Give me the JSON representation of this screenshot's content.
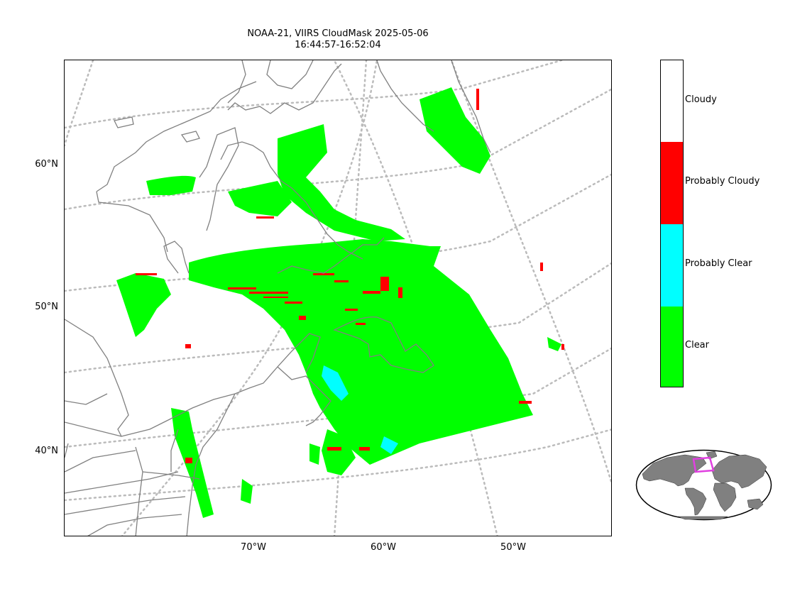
{
  "title": {
    "line1": "NOAA-21, VIIRS CloudMask 2025-05-06",
    "line2": "16:44:57-16:52:04"
  },
  "latitude_labels": [
    "60°N",
    "50°N",
    "40°N"
  ],
  "longitude_labels": [
    "70°W",
    "60°W",
    "50°W"
  ],
  "legend": {
    "categories": [
      {
        "label": "Cloudy",
        "color": "#ffffff"
      },
      {
        "label": "Probably Cloudy",
        "color": "#ff0000"
      },
      {
        "label": "Probably Clear",
        "color": "#00ffff"
      },
      {
        "label": "Clear",
        "color": "#00ff00"
      }
    ]
  },
  "colors": {
    "coastline": "#808080",
    "graticule": "#bbbbbb",
    "inset_land": "#808080",
    "inset_box": "#e040e0"
  }
}
